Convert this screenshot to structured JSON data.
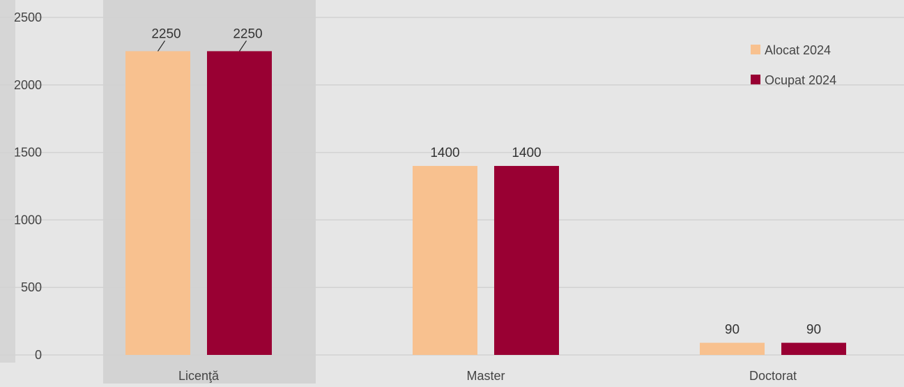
{
  "chart_data": {
    "type": "bar",
    "categories": [
      "Licenţă",
      "Master",
      "Doctorat"
    ],
    "series": [
      {
        "name": "Alocat 2024",
        "color": "#f8c18f",
        "values": [
          2250,
          1400,
          90
        ]
      },
      {
        "name": "Ocupat 2024",
        "color": "#990033",
        "values": [
          2250,
          1400,
          90
        ]
      }
    ],
    "ylim": [
      0,
      2500
    ],
    "yticks": [
      0,
      500,
      1000,
      1500,
      2000,
      2500
    ],
    "grid": true,
    "legend_position": "top-right",
    "data_labels": true
  }
}
